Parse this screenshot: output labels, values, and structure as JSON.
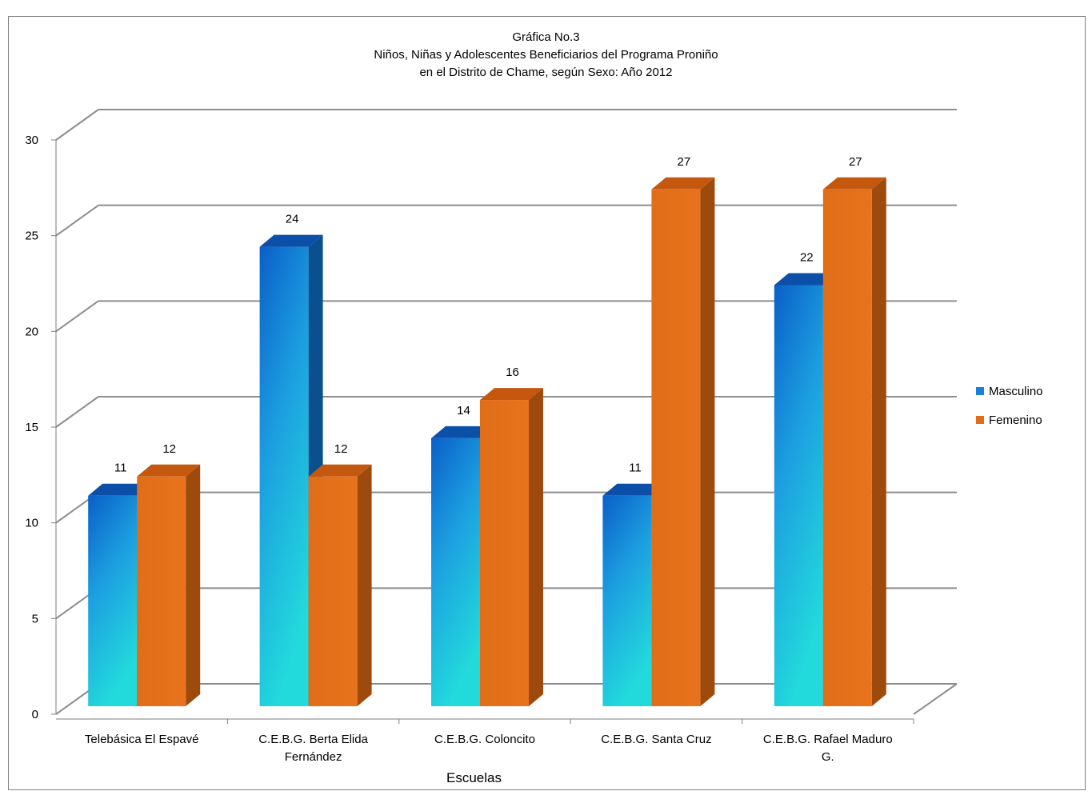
{
  "chart_data": {
    "type": "bar",
    "title": "Gráfica No.3",
    "subtitle_lines": [
      "Niños, Niñas y Adolescentes Beneficiarios del Programa Proniño",
      "en el Distrito de Chame, según Sexo: Año 2012"
    ],
    "xlabel": "Escuelas",
    "ylabel": "",
    "ylim": [
      0,
      30
    ],
    "yticks": [
      "0",
      "5",
      "10",
      "15",
      "20",
      "25",
      "30"
    ],
    "categories": [
      [
        "Telebásica El Espavé"
      ],
      [
        "C.E.B.G. Berta Elida",
        "Fernández"
      ],
      [
        "C.E.B.G. Coloncito"
      ],
      [
        "C.E.B.G. Santa Cruz"
      ],
      [
        "C.E.B.G. Rafael Maduro",
        "G."
      ]
    ],
    "series": [
      {
        "name": "Masculino",
        "values": [
          11,
          24,
          14,
          11,
          22
        ],
        "color": "#1a7fd8"
      },
      {
        "name": "Femenino",
        "values": [
          12,
          12,
          16,
          27,
          27
        ],
        "color": "#e36c1a"
      }
    ],
    "grid": true,
    "legend_position": "right",
    "style": "3d-clustered-column"
  }
}
